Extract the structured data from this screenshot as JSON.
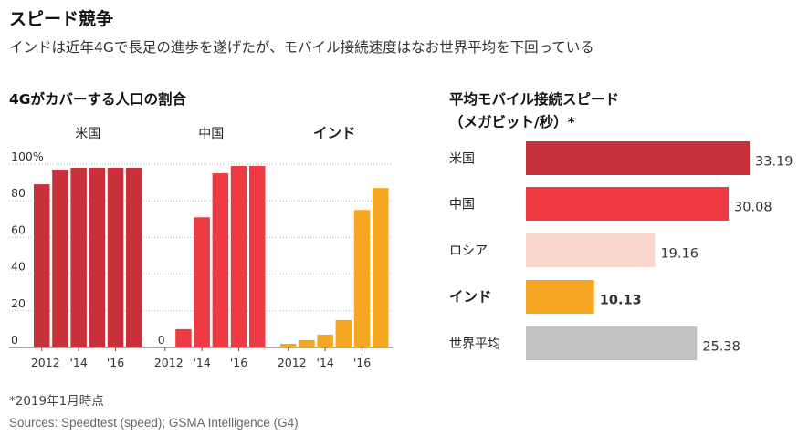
{
  "title": "スピード競争",
  "subtitle": "インドは近年4Gで長足の進歩を遂げたが、モバイル接続速度はなお世界平均を下回っている",
  "footnote": "*2019年1月時点",
  "sources": "Sources: Speedtest (speed); GSMA Intelligence (G4)",
  "colors": {
    "dark_red": "#c8303a",
    "red": "#ee3a43",
    "pink": "#fbd6cc",
    "orange": "#f5a623",
    "gray": "#c2c2c2"
  },
  "chart_data": [
    {
      "type": "bar",
      "title": "4Gがカバーする人口の割合",
      "ylim": [
        0,
        100
      ],
      "yticks": [
        "100%",
        "80",
        "60",
        "40",
        "20",
        "0"
      ],
      "ytick_values": [
        100,
        80,
        60,
        40,
        20,
        0
      ],
      "x": [
        2012,
        2013,
        2014,
        2015,
        2016,
        2017
      ],
      "xtick_labels": [
        "2012",
        "'14",
        "'16"
      ],
      "grid": true,
      "panels": [
        {
          "name": "米国",
          "emphasis": false,
          "color": "#c8303a",
          "values": [
            89,
            97,
            98,
            98,
            98,
            98
          ]
        },
        {
          "name": "中国",
          "emphasis": false,
          "color": "#ee3a43",
          "values": [
            0,
            10,
            71,
            95,
            99,
            99
          ],
          "zero_label": "0"
        },
        {
          "name": "インド",
          "emphasis": true,
          "color": "#f5a623",
          "values": [
            2,
            4,
            7,
            15,
            75,
            87
          ]
        }
      ]
    },
    {
      "type": "bar",
      "orientation": "horizontal",
      "title": "平均モバイル接続スピード",
      "subtitle": "（メガビット/秒）*",
      "categories": [
        "米国",
        "中国",
        "ロシア",
        "インド",
        "世界平均"
      ],
      "values": [
        33.19,
        30.08,
        19.16,
        10.13,
        25.38
      ],
      "labels": [
        "33.19",
        "30.08",
        "19.16",
        "10.13",
        "25.38"
      ],
      "colors": [
        "#c8303a",
        "#ee3a43",
        "#fbd6cc",
        "#f5a623",
        "#c2c2c2"
      ],
      "emphasis": [
        false,
        false,
        false,
        true,
        false
      ]
    }
  ]
}
